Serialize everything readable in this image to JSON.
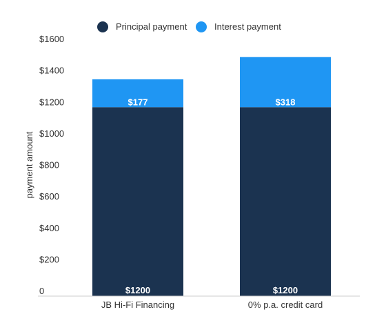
{
  "chart_data": {
    "type": "bar",
    "stacked": true,
    "categories": [
      "JB Hi-Fi Financing",
      "0% p.a. credit card"
    ],
    "series": [
      {
        "name": "Principal payment",
        "values": [
          1200,
          1200
        ],
        "labels": [
          "$1200",
          "$1200"
        ],
        "color": "#1b3350"
      },
      {
        "name": "Interest payment",
        "values": [
          177,
          318
        ],
        "labels": [
          "$177",
          "$318"
        ],
        "color": "#1f96f3"
      }
    ],
    "title": "",
    "xlabel": "",
    "ylabel": "payment amount",
    "ylim": [
      0,
      1600
    ],
    "yticks": [
      0,
      200,
      400,
      600,
      800,
      1000,
      1200,
      1400,
      1600
    ],
    "ytick_labels": [
      "0",
      "$200",
      "$400",
      "$600",
      "$800",
      "$1000",
      "$1200",
      "$1400",
      "$1600"
    ],
    "grid": false,
    "legend_position": "top-center"
  }
}
